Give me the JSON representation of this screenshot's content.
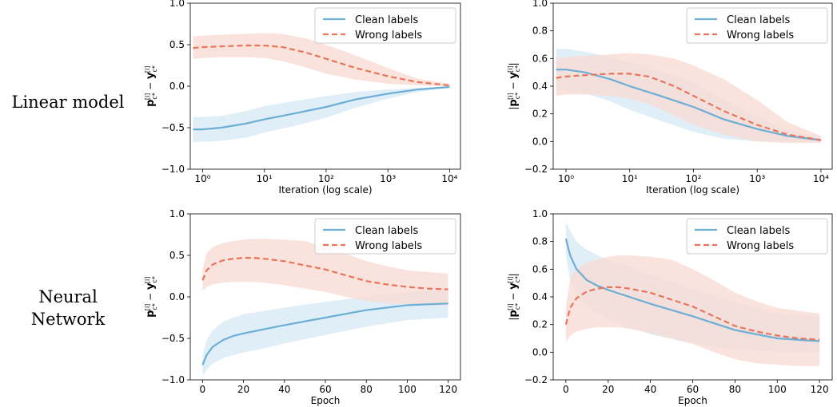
{
  "row_labels": [
    "Linear model",
    "Neural\nNetwork"
  ],
  "colors": {
    "clean": "#6baed6",
    "wrong": "#e8755a",
    "clean_band": "#d6e8f4",
    "wrong_band": "#f9dad2"
  },
  "chart_data": [
    {
      "type": "line",
      "scale_x": "log",
      "xlabel": "Iteration (log scale)",
      "ylabel": "p_{c*}^{[i]} − y_{c*}^{[i]}",
      "xlim": [
        0.63,
        15000
      ],
      "ylim": [
        -1.0,
        1.0
      ],
      "xticks": [
        1,
        10,
        100,
        1000,
        10000
      ],
      "xtick_labels": [
        "10⁰",
        "10¹",
        "10²",
        "10³",
        "10⁴"
      ],
      "yticks": [
        -1.0,
        -0.5,
        0.0,
        0.5,
        1.0
      ],
      "ytick_labels": [
        "−1.0",
        "−0.5",
        "0.0",
        "0.5",
        "1.0"
      ],
      "legend_position": "top-right",
      "series": [
        {
          "name": "Clean labels",
          "style": "solid",
          "x": [
            0.7,
            1,
            2,
            5,
            10,
            30,
            100,
            300,
            1000,
            3000,
            10000
          ],
          "y": [
            -0.52,
            -0.52,
            -0.5,
            -0.45,
            -0.4,
            -0.33,
            -0.25,
            -0.16,
            -0.09,
            -0.04,
            -0.01
          ],
          "lower": [
            -0.67,
            -0.67,
            -0.66,
            -0.62,
            -0.56,
            -0.48,
            -0.38,
            -0.26,
            -0.15,
            -0.07,
            -0.02
          ],
          "upper": [
            -0.37,
            -0.37,
            -0.36,
            -0.3,
            -0.24,
            -0.18,
            -0.12,
            -0.07,
            -0.04,
            -0.02,
            0.0
          ]
        },
        {
          "name": "Wrong labels",
          "style": "dashed",
          "x": [
            0.7,
            1,
            2,
            5,
            10,
            20,
            50,
            100,
            300,
            1000,
            3000,
            10000
          ],
          "y": [
            0.46,
            0.47,
            0.48,
            0.49,
            0.49,
            0.47,
            0.4,
            0.33,
            0.22,
            0.12,
            0.05,
            0.01
          ],
          "lower": [
            0.33,
            0.34,
            0.35,
            0.35,
            0.34,
            0.3,
            0.22,
            0.15,
            0.08,
            0.03,
            0.01,
            0.0
          ],
          "upper": [
            0.6,
            0.61,
            0.62,
            0.63,
            0.64,
            0.63,
            0.57,
            0.5,
            0.37,
            0.22,
            0.09,
            0.03
          ]
        }
      ]
    },
    {
      "type": "line",
      "scale_x": "log",
      "xlabel": "Iteration (log scale)",
      "ylabel": "| p_{c*}^{[i]} − y_{c*}^{[i]} |",
      "xlim": [
        0.63,
        15000
      ],
      "ylim": [
        -0.2,
        1.0
      ],
      "xticks": [
        1,
        10,
        100,
        1000,
        10000
      ],
      "xtick_labels": [
        "10⁰",
        "10¹",
        "10²",
        "10³",
        "10⁴"
      ],
      "yticks": [
        -0.2,
        0.0,
        0.2,
        0.4,
        0.6,
        0.8,
        1.0
      ],
      "ytick_labels": [
        "−0.2",
        "0.0",
        "0.2",
        "0.4",
        "0.6",
        "0.8",
        "1.0"
      ],
      "legend_position": "top-right",
      "series": [
        {
          "name": "Clean labels",
          "style": "solid",
          "x": [
            0.7,
            1,
            2,
            5,
            10,
            30,
            100,
            300,
            1000,
            3000,
            10000
          ],
          "y": [
            0.52,
            0.52,
            0.5,
            0.45,
            0.4,
            0.33,
            0.25,
            0.16,
            0.09,
            0.04,
            0.01
          ],
          "lower": [
            0.37,
            0.37,
            0.35,
            0.29,
            0.23,
            0.15,
            0.07,
            0.02,
            0.0,
            0.0,
            0.0
          ],
          "upper": [
            0.67,
            0.67,
            0.65,
            0.61,
            0.57,
            0.51,
            0.43,
            0.3,
            0.18,
            0.08,
            0.03
          ]
        },
        {
          "name": "Wrong labels",
          "style": "dashed",
          "x": [
            0.7,
            1,
            2,
            5,
            10,
            20,
            50,
            100,
            300,
            1000,
            3000,
            10000
          ],
          "y": [
            0.46,
            0.47,
            0.48,
            0.49,
            0.49,
            0.47,
            0.4,
            0.33,
            0.22,
            0.12,
            0.05,
            0.01
          ],
          "lower": [
            0.33,
            0.34,
            0.34,
            0.33,
            0.31,
            0.27,
            0.19,
            0.12,
            0.05,
            0.0,
            -0.01,
            -0.01
          ],
          "upper": [
            0.6,
            0.61,
            0.62,
            0.63,
            0.64,
            0.63,
            0.6,
            0.55,
            0.45,
            0.3,
            0.14,
            0.04
          ]
        }
      ]
    },
    {
      "type": "line",
      "scale_x": "linear",
      "xlabel": "Epoch",
      "ylabel": "p_{c*}^{[i]} − y_{c*}^{[i]}",
      "xlim": [
        -6,
        126
      ],
      "ylim": [
        -1.0,
        1.0
      ],
      "xticks": [
        0,
        20,
        40,
        60,
        80,
        100,
        120
      ],
      "xtick_labels": [
        "0",
        "20",
        "40",
        "60",
        "80",
        "100",
        "120"
      ],
      "yticks": [
        -1.0,
        -0.5,
        0.0,
        0.5,
        1.0
      ],
      "ytick_labels": [
        "−1.0",
        "−0.5",
        "0.0",
        "0.5",
        "1.0"
      ],
      "legend_position": "top-right",
      "series": [
        {
          "name": "Clean labels",
          "style": "solid",
          "x": [
            0,
            2,
            5,
            10,
            15,
            20,
            30,
            40,
            60,
            80,
            100,
            120
          ],
          "y": [
            -0.82,
            -0.7,
            -0.6,
            -0.52,
            -0.47,
            -0.44,
            -0.39,
            -0.34,
            -0.25,
            -0.16,
            -0.1,
            -0.08
          ],
          "lower": [
            -0.95,
            -0.88,
            -0.8,
            -0.74,
            -0.7,
            -0.67,
            -0.62,
            -0.56,
            -0.46,
            -0.36,
            -0.28,
            -0.25
          ],
          "upper": [
            -0.7,
            -0.52,
            -0.4,
            -0.3,
            -0.25,
            -0.21,
            -0.17,
            -0.13,
            -0.06,
            0.0,
            0.06,
            0.08
          ]
        },
        {
          "name": "Wrong labels",
          "style": "dashed",
          "x": [
            0,
            2,
            5,
            10,
            15,
            20,
            25,
            30,
            40,
            50,
            60,
            70,
            80,
            90,
            100,
            110,
            120
          ],
          "y": [
            0.2,
            0.32,
            0.39,
            0.44,
            0.46,
            0.47,
            0.47,
            0.46,
            0.43,
            0.38,
            0.33,
            0.26,
            0.19,
            0.15,
            0.12,
            0.1,
            0.09
          ],
          "lower": [
            0.07,
            0.12,
            0.15,
            0.17,
            0.18,
            0.18,
            0.18,
            0.17,
            0.14,
            0.1,
            0.06,
            0.0,
            -0.05,
            -0.08,
            -0.09,
            -0.1,
            -0.1
          ],
          "upper": [
            0.33,
            0.53,
            0.6,
            0.65,
            0.67,
            0.69,
            0.7,
            0.7,
            0.69,
            0.67,
            0.6,
            0.52,
            0.43,
            0.37,
            0.32,
            0.3,
            0.28
          ]
        }
      ]
    },
    {
      "type": "line",
      "scale_x": "linear",
      "xlabel": "Epoch",
      "ylabel": "| p_{c*}^{[i]} − y_{c*}^{[i]} |",
      "xlim": [
        -6,
        126
      ],
      "ylim": [
        -0.2,
        1.0
      ],
      "xticks": [
        0,
        20,
        40,
        60,
        80,
        100,
        120
      ],
      "xtick_labels": [
        "0",
        "20",
        "40",
        "60",
        "80",
        "100",
        "120"
      ],
      "yticks": [
        -0.2,
        0.0,
        0.2,
        0.4,
        0.6,
        0.8,
        1.0
      ],
      "ytick_labels": [
        "−0.2",
        "0.0",
        "0.2",
        "0.4",
        "0.6",
        "0.8",
        "1.0"
      ],
      "legend_position": "top-right",
      "series": [
        {
          "name": "Clean labels",
          "style": "solid",
          "x": [
            0,
            2,
            5,
            10,
            15,
            20,
            30,
            40,
            60,
            80,
            100,
            120
          ],
          "y": [
            0.82,
            0.7,
            0.6,
            0.52,
            0.48,
            0.45,
            0.4,
            0.35,
            0.26,
            0.16,
            0.1,
            0.08
          ],
          "lower": [
            0.7,
            0.52,
            0.42,
            0.33,
            0.28,
            0.24,
            0.18,
            0.13,
            0.06,
            0.02,
            0.0,
            0.0
          ],
          "upper": [
            0.94,
            0.88,
            0.8,
            0.74,
            0.7,
            0.67,
            0.62,
            0.56,
            0.46,
            0.36,
            0.28,
            0.26
          ]
        },
        {
          "name": "Wrong labels",
          "style": "dashed",
          "x": [
            0,
            2,
            5,
            10,
            15,
            20,
            25,
            30,
            40,
            50,
            60,
            70,
            80,
            90,
            100,
            110,
            120
          ],
          "y": [
            0.2,
            0.32,
            0.39,
            0.44,
            0.46,
            0.47,
            0.47,
            0.46,
            0.43,
            0.38,
            0.33,
            0.26,
            0.19,
            0.15,
            0.12,
            0.1,
            0.09
          ],
          "lower": [
            0.07,
            0.12,
            0.15,
            0.17,
            0.18,
            0.18,
            0.18,
            0.17,
            0.14,
            0.1,
            0.06,
            0.0,
            -0.05,
            -0.08,
            -0.09,
            -0.1,
            -0.1
          ],
          "upper": [
            0.33,
            0.53,
            0.6,
            0.65,
            0.67,
            0.69,
            0.7,
            0.7,
            0.69,
            0.67,
            0.6,
            0.52,
            0.43,
            0.37,
            0.32,
            0.3,
            0.28
          ]
        }
      ]
    }
  ]
}
